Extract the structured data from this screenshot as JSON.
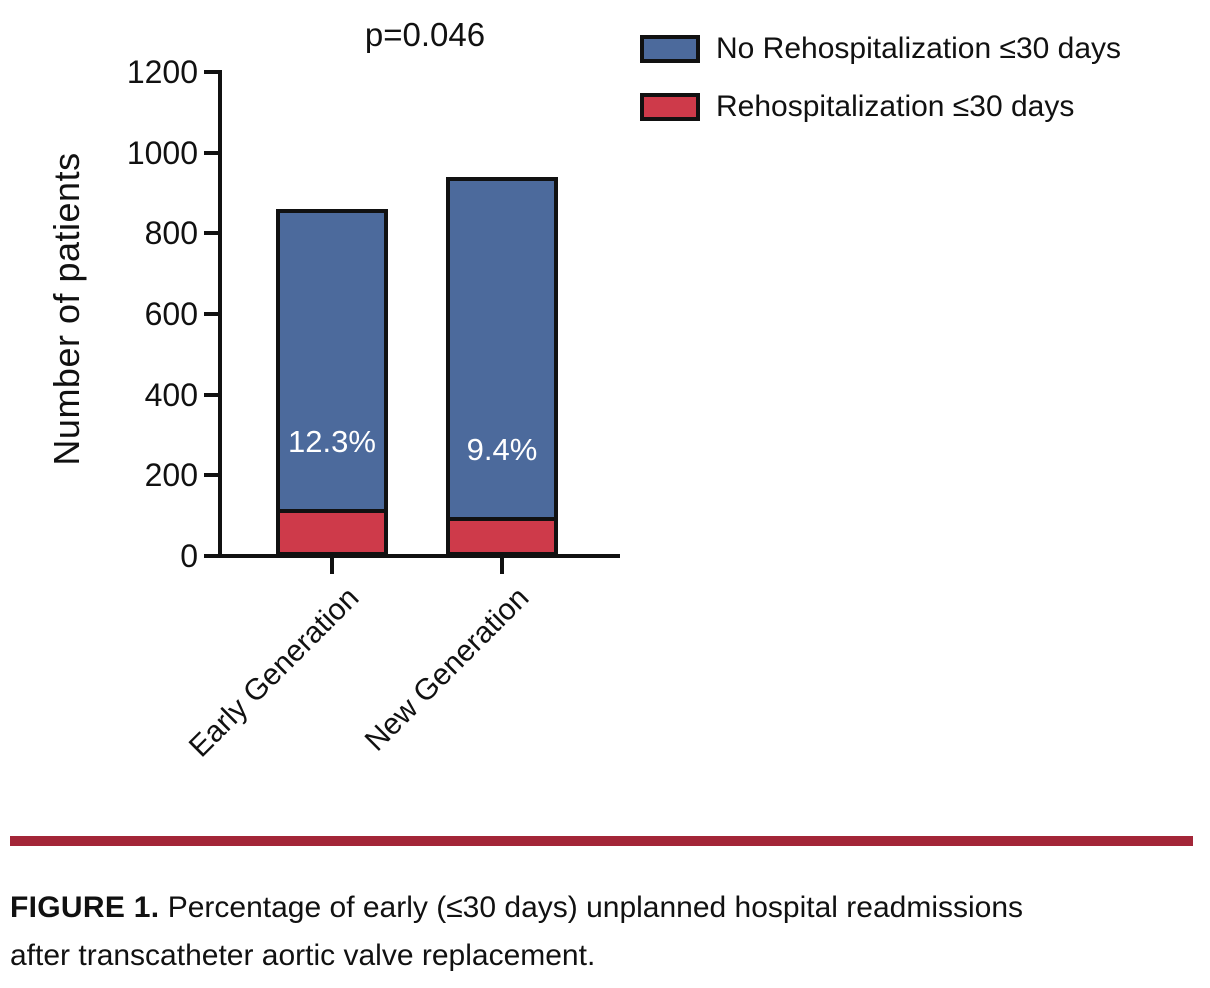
{
  "figure": {
    "caption_label": "FIGURE 1.",
    "caption_line1": "Percentage of early (≤30 days) unplanned hospital readmissions",
    "caption_line2": "after transcatheter aortic valve replacement.",
    "rule_color": "#a32638",
    "background_color": "#ffffff",
    "text_color": "#111111"
  },
  "chart_data": {
    "type": "bar",
    "stacked": true,
    "annotation": "p=0.046",
    "ylabel": "Number of patients",
    "xlabel": "",
    "ylim": [
      0,
      1200
    ],
    "yticks": [
      0,
      200,
      400,
      600,
      800,
      1000,
      1200
    ],
    "grid": false,
    "categories": [
      "Early Generation",
      "New Generation"
    ],
    "series": [
      {
        "name": "Rehospitalization ≤30 days",
        "color": "#ce3a4a",
        "values": [
          106,
          88
        ]
      },
      {
        "name": "No Rehospitalization ≤30 days",
        "color": "#4c6a9c",
        "values": [
          754,
          852
        ]
      }
    ],
    "stack_order_bottom_to_top": [
      "Rehospitalization ≤30 days",
      "No Rehospitalization ≤30 days"
    ],
    "totals": [
      860,
      940
    ],
    "bar_labels": [
      "12.3%",
      "9.4%"
    ],
    "bar_label_color": "#ffffff",
    "legend_position": "top-right",
    "legend": [
      {
        "label": "No Rehospitalization ≤30 days",
        "color": "#4c6a9c"
      },
      {
        "label": "Rehospitalization ≤30 days",
        "color": "#ce3a4a"
      }
    ],
    "axis_color": "#111111"
  }
}
